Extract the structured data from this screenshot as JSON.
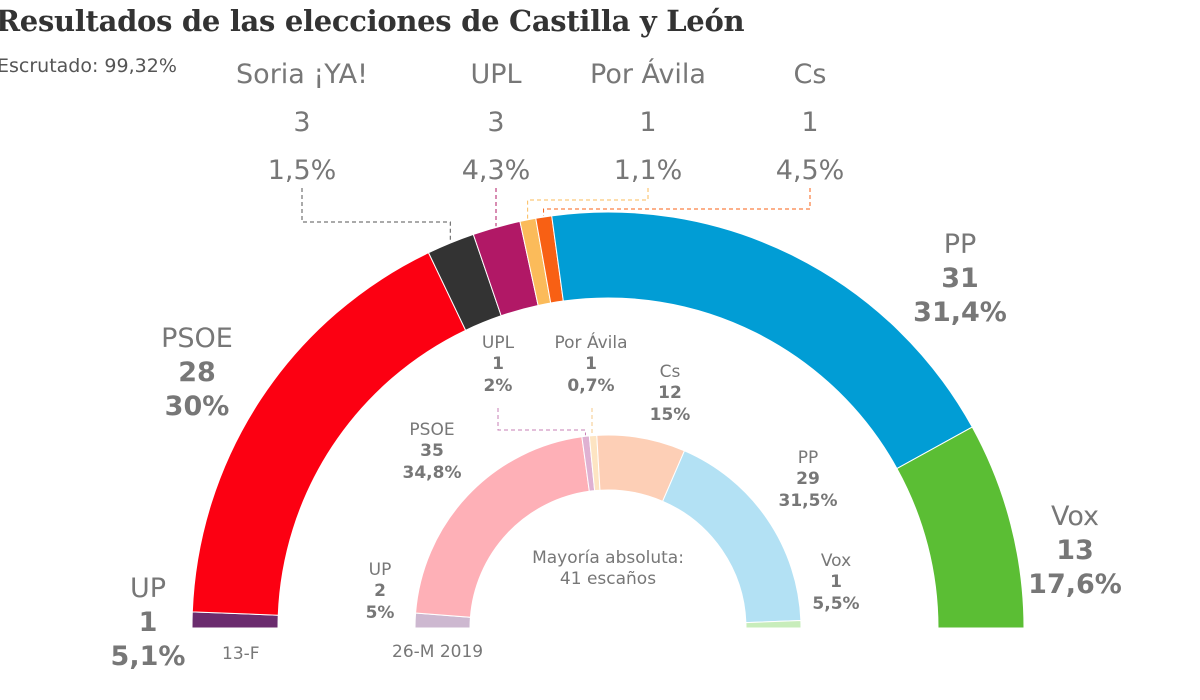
{
  "title": "Resultados de las elecciones de Castilla y León",
  "subtitle": "Escrutado: 99,32%",
  "center_note": {
    "line1": "Mayoría absoluta:",
    "line2": "41 escaños"
  },
  "chart_data": [
    {
      "type": "pie",
      "subtype": "parliament-semicircle",
      "label": "13-F",
      "total_seats": 81,
      "parties": [
        {
          "name": "UP",
          "seats": 1,
          "pct": "5,1%",
          "color": "#6b2c6e"
        },
        {
          "name": "PSOE",
          "seats": 28,
          "pct": "30%",
          "color": "#fc0012"
        },
        {
          "name": "Soria ¡YA!",
          "seats": 3,
          "pct": "1,5%",
          "color": "#333333"
        },
        {
          "name": "UPL",
          "seats": 3,
          "pct": "4,3%",
          "color": "#b11866"
        },
        {
          "name": "Por Ávila",
          "seats": 1,
          "pct": "1,1%",
          "color": "#fbbb5a"
        },
        {
          "name": "Cs",
          "seats": 1,
          "pct": "4,5%",
          "color": "#f86014"
        },
        {
          "name": "PP",
          "seats": 31,
          "pct": "31,4%",
          "color": "#019dd5"
        },
        {
          "name": "Vox",
          "seats": 13,
          "pct": "17,6%",
          "color": "#5bbe34"
        }
      ]
    },
    {
      "type": "pie",
      "subtype": "parliament-semicircle",
      "label": "26-M 2019",
      "total_seats": 81,
      "parties": [
        {
          "name": "UP",
          "seats": 2,
          "pct": "5%",
          "color": "#cdb8d0"
        },
        {
          "name": "PSOE",
          "seats": 35,
          "pct": "34,8%",
          "color": "#feb0b7"
        },
        {
          "name": "UPL",
          "seats": 1,
          "pct": "2%",
          "color": "#dfb1d2"
        },
        {
          "name": "Por Ávila",
          "seats": 1,
          "pct": "0,7%",
          "color": "#fde4c2"
        },
        {
          "name": "Cs",
          "seats": 12,
          "pct": "15%",
          "color": "#fdcfb6"
        },
        {
          "name": "PP",
          "seats": 29,
          "pct": "31,5%",
          "color": "#b3e1f4"
        },
        {
          "name": "Vox",
          "seats": 1,
          "pct": "5,5%",
          "color": "#c8edbb"
        }
      ]
    }
  ]
}
